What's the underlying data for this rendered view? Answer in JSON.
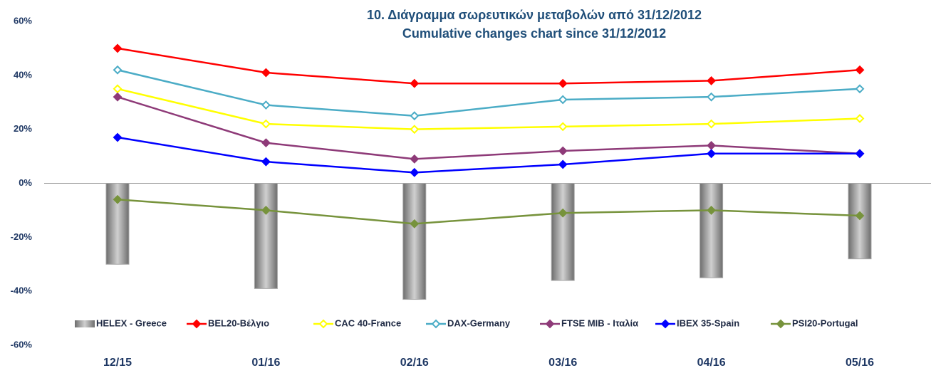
{
  "chart_data": {
    "type": "bar-line",
    "title": "10.  Διάγραμμα σωρευτικών μεταβολών από 31/12/2012",
    "subtitle": "Cumulative changes chart since 31/12/2012",
    "categories": [
      "12/15",
      "01/16",
      "02/16",
      "03/16",
      "04/16",
      "05/16"
    ],
    "series": [
      {
        "name": "HELEX - Greece",
        "type": "bar",
        "color": "#a6a6a6",
        "values": [
          -30,
          -39,
          -43,
          -36,
          -35,
          -28
        ]
      },
      {
        "name": "BEL20-Βέλγιο",
        "type": "line",
        "color": "#ff0000",
        "marker": "filled",
        "values": [
          50,
          41,
          37,
          37,
          38,
          42
        ]
      },
      {
        "name": "CAC 40-France",
        "type": "line",
        "color": "#ffff00",
        "marker": "open",
        "values": [
          35,
          22,
          20,
          21,
          22,
          24
        ]
      },
      {
        "name": "DAX-Germany",
        "type": "line",
        "color": "#4bacc6",
        "marker": "open",
        "values": [
          42,
          29,
          25,
          31,
          32,
          35
        ]
      },
      {
        "name": "FTSE MIB - Ιταλία",
        "type": "line",
        "color": "#8e3a78",
        "marker": "filled",
        "values": [
          32,
          15,
          9,
          12,
          14,
          11
        ]
      },
      {
        "name": "IBEX 35-Spain",
        "type": "line",
        "color": "#0000ff",
        "marker": "filled",
        "values": [
          17,
          8,
          4,
          7,
          11,
          11
        ]
      },
      {
        "name": "PSI20-Portugal",
        "type": "line",
        "color": "#77933c",
        "marker": "filled",
        "values": [
          -6,
          -10,
          -15,
          -11,
          -10,
          -12
        ]
      }
    ],
    "ylim": [
      -60,
      60
    ],
    "yticks": [
      {
        "value": -60,
        "label": "-60%"
      },
      {
        "value": -40,
        "label": "-40%"
      },
      {
        "value": -20,
        "label": "-20%"
      },
      {
        "value": 0,
        "label": "0%"
      },
      {
        "value": 20,
        "label": "20%"
      },
      {
        "value": 40,
        "label": "40%"
      },
      {
        "value": 60,
        "label": "60%"
      }
    ],
    "grid": false,
    "legend": "bottom"
  }
}
